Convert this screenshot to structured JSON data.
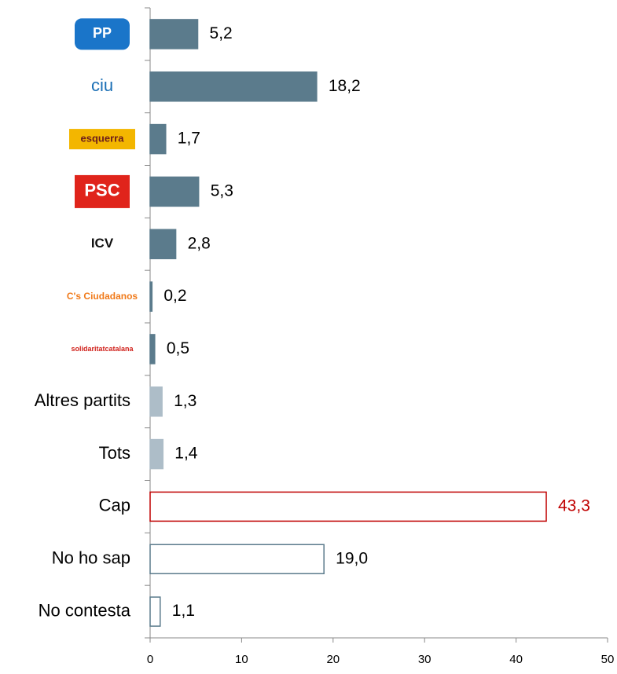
{
  "chart_data": {
    "type": "hbar",
    "categories": [
      "PP",
      "ciu",
      "esquerra",
      "PSC",
      "ICV",
      "C's Ciudadanos",
      "solidaritatcatalana",
      "Altres partits",
      "Tots",
      "Cap",
      "No ho sap",
      "No contesta"
    ],
    "values": [
      5.2,
      18.2,
      1.7,
      5.3,
      2.8,
      0.2,
      0.5,
      1.3,
      1.4,
      43.3,
      19.0,
      1.1
    ],
    "value_labels": [
      "5,2",
      "18,2",
      "1,7",
      "5,3",
      "2,8",
      "0,2",
      "0,5",
      "1,3",
      "1,4",
      "43,3",
      "19,0",
      "1,1"
    ],
    "colors": [
      "#5b7b8c",
      "#5b7b8c",
      "#5b7b8c",
      "#5b7b8c",
      "#5b7b8c",
      "#5b7b8c",
      "#5b7b8c",
      "#adbdc8",
      "#adbdc8",
      "#ffffff",
      "#ffffff",
      "#ffffff"
    ],
    "edge_colors": [
      "#5b7b8c",
      "#5b7b8c",
      "#5b7b8c",
      "#5b7b8c",
      "#5b7b8c",
      "#5b7b8c",
      "#5b7b8c",
      "#adbdc8",
      "#adbdc8",
      "#c00000",
      "#5b7b8c",
      "#5b7b8c"
    ],
    "label_colors": [
      "#000000",
      "#000000",
      "#000000",
      "#000000",
      "#000000",
      "#000000",
      "#000000",
      "#000000",
      "#000000",
      "#c00000",
      "#000000",
      "#000000"
    ],
    "xlim": [
      0,
      50
    ],
    "xticks": [
      0,
      10,
      20,
      30,
      40,
      50
    ]
  }
}
